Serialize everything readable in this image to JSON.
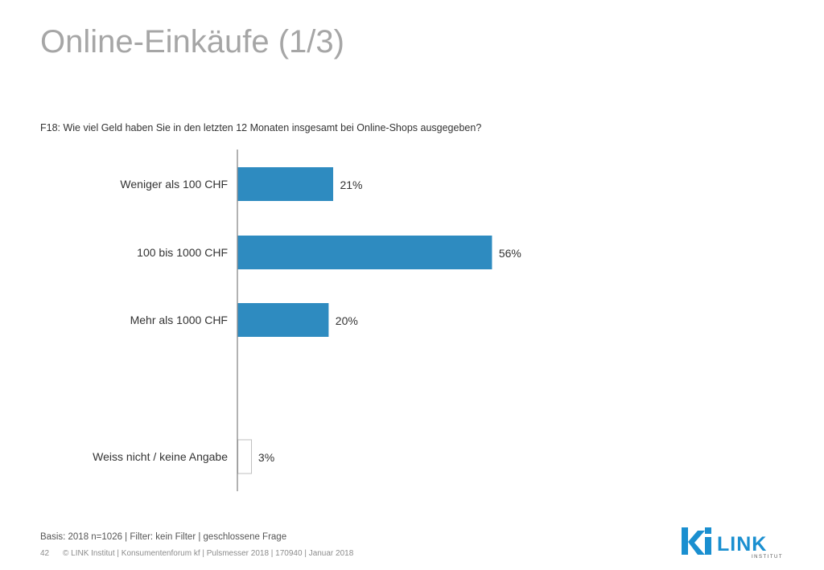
{
  "page": {
    "title": "Online-Einkäufe (1/3)",
    "question": "F18:  Wie viel Geld haben Sie in den letzten 12 Monaten insgesamt bei Online-Shops ausgegeben?"
  },
  "footer": {
    "basis": "Basis: 2018 n=1026 | Filter: kein Filter | geschlossene Frage",
    "page_number": "42",
    "copyright": "© LINK Institut | Konsumentenforum kf | Pulsmesser 2018 | 170940 | Januar 2018"
  },
  "logo": {
    "mark": "ki",
    "name": "LINK",
    "sub": "INSTITUT",
    "color": "#1a8fd0"
  },
  "colors": {
    "bar": "#2e8bc0",
    "bar_outline_empty": "#bfbfbf",
    "axis": "#7f7f7f"
  },
  "chart_data": {
    "type": "bar",
    "orientation": "horizontal",
    "categories": [
      "Weniger als 100 CHF",
      "100 bis 1000 CHF",
      "Mehr als 1000 CHF",
      "Weiss nicht / keine Angabe"
    ],
    "values": [
      21,
      56,
      20,
      3
    ],
    "value_labels": [
      "21%",
      "56%",
      "20%",
      "3%"
    ],
    "unit": "%",
    "xlim": [
      0,
      100
    ],
    "grid": false,
    "legend": "none"
  }
}
